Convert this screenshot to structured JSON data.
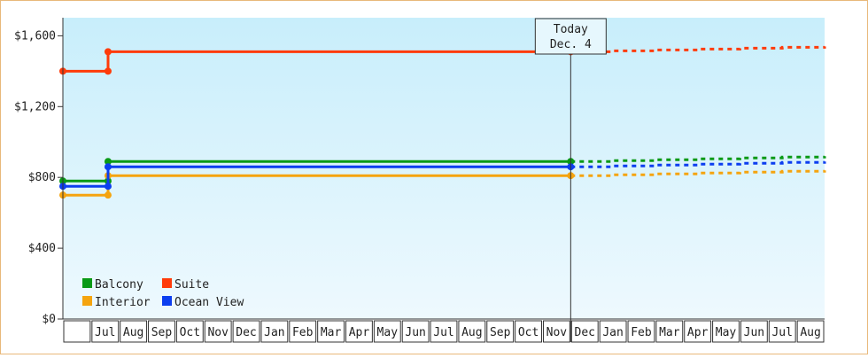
{
  "chart_data": {
    "type": "line",
    "step": true,
    "y_axis": {
      "ticks": [
        "$0",
        "$400",
        "$800",
        "$1,200",
        "$1,600"
      ],
      "tick_values": [
        0,
        400,
        800,
        1200,
        1600
      ],
      "range": [
        0,
        1600
      ]
    },
    "x_axis": {
      "months": [
        "",
        "Jul",
        "Aug",
        "Sep",
        "Oct",
        "Nov",
        "Dec",
        "Jan",
        "Feb",
        "Mar",
        "Apr",
        "May",
        "Jun",
        "Jul",
        "Aug",
        "Sep",
        "Oct",
        "Nov",
        "Dec",
        "Jan",
        "Feb",
        "Mar",
        "Apr",
        "May",
        "Jun",
        "Jul",
        "Aug"
      ]
    },
    "today": {
      "line1": "Today",
      "line2": "Dec. 4",
      "month_index": 18
    },
    "grid": false,
    "legend_position": "bottom-left",
    "series": [
      {
        "name": "Balcony",
        "color": "#0a9a16",
        "actual": [
          [
            0,
            780
          ],
          [
            1.6,
            780
          ],
          [
            1.6,
            890
          ],
          [
            18,
            890
          ]
        ],
        "forecast": [
          [
            18,
            890
          ],
          [
            27,
            920
          ]
        ]
      },
      {
        "name": "Suite",
        "color": "#ff3b0a",
        "actual": [
          [
            0,
            1400
          ],
          [
            1.6,
            1400
          ],
          [
            1.6,
            1510
          ],
          [
            18,
            1510
          ]
        ],
        "forecast": [
          [
            18,
            1510
          ],
          [
            27,
            1540
          ]
        ]
      },
      {
        "name": "Interior",
        "color": "#f5a40f",
        "actual": [
          [
            0,
            700
          ],
          [
            1.6,
            700
          ],
          [
            1.6,
            810
          ],
          [
            18,
            810
          ]
        ],
        "forecast": [
          [
            18,
            810
          ],
          [
            27,
            840
          ]
        ]
      },
      {
        "name": "Ocean View",
        "color": "#0c3ef0",
        "actual": [
          [
            0,
            750
          ],
          [
            1.6,
            750
          ],
          [
            1.6,
            860
          ],
          [
            18,
            860
          ]
        ],
        "forecast": [
          [
            18,
            860
          ],
          [
            27,
            890
          ]
        ]
      }
    ]
  }
}
